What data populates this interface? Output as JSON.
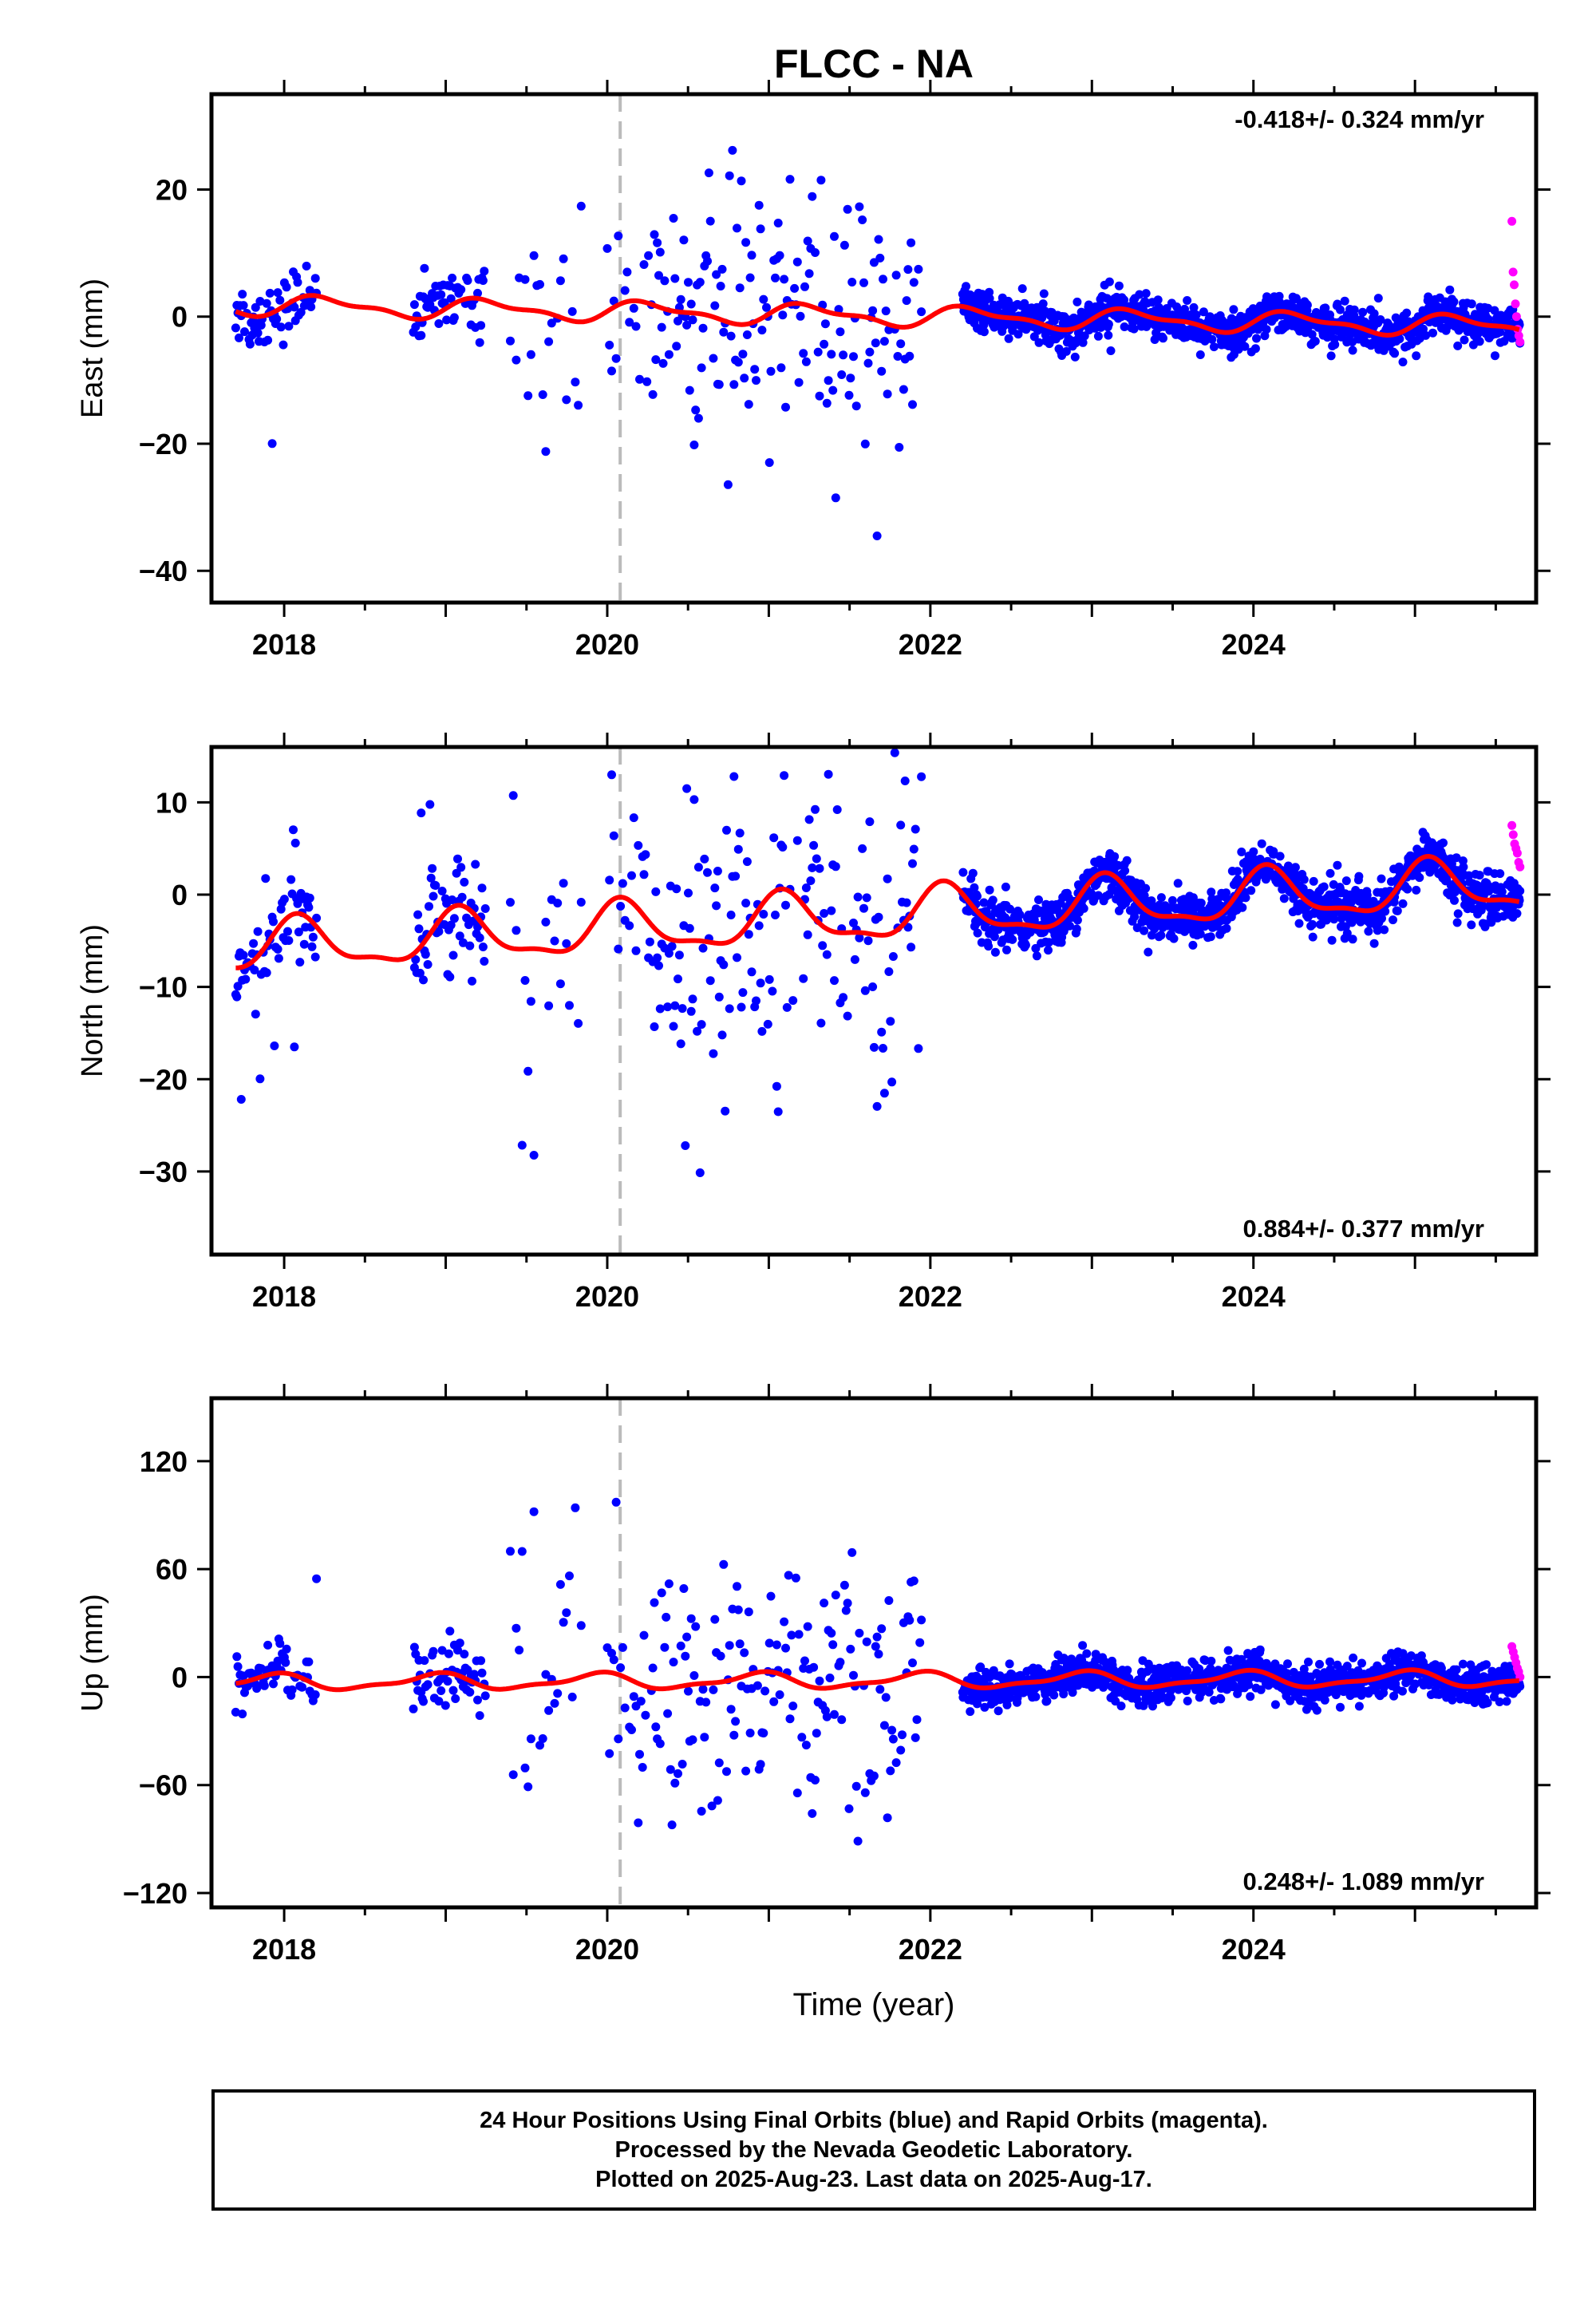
{
  "chart_data": [
    {
      "type": "scatter",
      "title": "FLCC - NA",
      "ylabel": "East (mm)",
      "xlabel": "",
      "xlim": [
        2017.55,
        2025.75
      ],
      "ylim": [
        -45,
        35
      ],
      "yticks": [
        -40,
        -20,
        0,
        20
      ],
      "xticks": [
        2018,
        2020,
        2022,
        2024
      ],
      "rate_label": "-0.418+/- 0.324 mm/yr",
      "rate_position": "top-right",
      "event_line_x": 2020.08,
      "grid": false,
      "colors": {
        "final": "#0000ff",
        "rapid": "#ff00ff",
        "model": "#ff0000",
        "event": "#bbbbbb"
      },
      "series": [
        {
          "name": "Final Orbits",
          "values_desc": "scatter"
        },
        {
          "name": "Rapid Orbits"
        }
      ],
      "segments": [
        {
          "from": 2017.7,
          "to": 2018.2,
          "spread": 2.5,
          "out": 0.04,
          "outAmp": 20
        },
        {
          "from": 2018.8,
          "to": 2019.25,
          "spread": 3.0,
          "out": 0.03,
          "outAmp": 10
        },
        {
          "from": 2019.4,
          "to": 2019.85,
          "spread": 12,
          "out": 0,
          "outAmp": 0,
          "density": 0.45
        },
        {
          "from": 2020.0,
          "to": 2020.2,
          "spread": 9,
          "out": 0,
          "outAmp": 0,
          "density": 0.6
        },
        {
          "from": 2020.2,
          "to": 2021.95,
          "spread": 10,
          "out": 0,
          "outAmp": 0,
          "density": 0.9
        },
        {
          "from": 2022.2,
          "to": 2025.65,
          "spread": 1.6,
          "out": 0,
          "outAmp": 0,
          "density": 3.2
        }
      ],
      "rapid_range": [
        2025.6,
        2025.65
      ],
      "rapid_values": [
        15,
        7,
        5,
        2,
        0,
        -2,
        -3,
        -4
      ],
      "model": {
        "offset": 0.2,
        "trend": -0.418,
        "annual": 1.4,
        "semi": 0.6,
        "t0": 2021.5
      }
    },
    {
      "type": "scatter",
      "title": "",
      "ylabel": "North (mm)",
      "xlabel": "",
      "xlim": [
        2017.55,
        2025.75
      ],
      "ylim": [
        -39,
        16
      ],
      "yticks": [
        -30,
        -20,
        -10,
        0,
        10
      ],
      "xticks": [
        2018,
        2020,
        2022,
        2024
      ],
      "rate_label": "0.884+/- 0.377 mm/yr",
      "rate_position": "bottom-right",
      "event_line_x": 2020.08,
      "grid": false,
      "segments": [
        {
          "from": 2017.7,
          "to": 2018.2,
          "spread": 2.2,
          "out": 0.06,
          "outAmp": 10
        },
        {
          "from": 2018.8,
          "to": 2019.25,
          "spread": 2.8,
          "out": 0.05,
          "outAmp": 10
        },
        {
          "from": 2019.4,
          "to": 2019.85,
          "spread": 10,
          "out": 0,
          "outAmp": 0,
          "density": 0.45
        },
        {
          "from": 2020.0,
          "to": 2020.2,
          "spread": 10,
          "out": 0,
          "outAmp": 0,
          "density": 0.6
        },
        {
          "from": 2020.2,
          "to": 2021.95,
          "spread": 8,
          "out": 0.03,
          "outAmp": 20,
          "density": 0.9
        },
        {
          "from": 2022.2,
          "to": 2025.65,
          "spread": 1.3,
          "out": 0,
          "outAmp": 0,
          "density": 3.2
        }
      ],
      "rapid_range": [
        2025.6,
        2025.65
      ],
      "rapid_values": [
        7.5,
        6.5,
        5.5,
        5,
        4.5,
        3.5,
        3
      ],
      "model": {
        "offset": -2.5,
        "trend": 0.884,
        "annual": 2.6,
        "semi": 0.9,
        "t0": 2021.5
      }
    },
    {
      "type": "scatter",
      "title": "",
      "ylabel": "Up (mm)",
      "xlabel": "Time (year)",
      "xlim": [
        2017.55,
        2025.75
      ],
      "ylim": [
        -128,
        155
      ],
      "yticks": [
        -120,
        -60,
        0,
        60,
        120
      ],
      "xticks": [
        2018,
        2020,
        2022,
        2024
      ],
      "rate_label": "0.248+/- 1.089 mm/yr",
      "rate_position": "bottom-right",
      "event_line_x": 2020.08,
      "grid": false,
      "segments": [
        {
          "from": 2017.7,
          "to": 2018.2,
          "spread": 8,
          "out": 0.06,
          "outAmp": 45
        },
        {
          "from": 2018.8,
          "to": 2019.25,
          "spread": 10,
          "out": 0.03,
          "outAmp": 30
        },
        {
          "from": 2019.4,
          "to": 2019.85,
          "spread": 45,
          "out": 0,
          "outAmp": 0,
          "density": 0.45
        },
        {
          "from": 2020.0,
          "to": 2020.2,
          "spread": 30,
          "out": 0,
          "outAmp": 0,
          "density": 0.6
        },
        {
          "from": 2020.2,
          "to": 2021.95,
          "spread": 35,
          "out": 0.03,
          "outAmp": 60,
          "density": 0.9
        },
        {
          "from": 2022.2,
          "to": 2025.65,
          "spread": 5,
          "out": 0,
          "outAmp": 0,
          "density": 3.2
        }
      ],
      "rapid_range": [
        2025.6,
        2025.65
      ],
      "rapid_values": [
        17,
        14,
        11,
        8,
        5,
        3,
        0
      ],
      "model": {
        "offset": -2,
        "trend": 0.248,
        "annual": 4,
        "semi": 1.5,
        "t0": 2021.5
      }
    }
  ],
  "footer": {
    "line1": "24 Hour Positions Using Final Orbits (blue) and Rapid Orbits (magenta).",
    "line2": "Processed by the Nevada Geodetic Laboratory.",
    "line3": "Plotted on 2025-Aug-23. Last data on 2025-Aug-17."
  }
}
